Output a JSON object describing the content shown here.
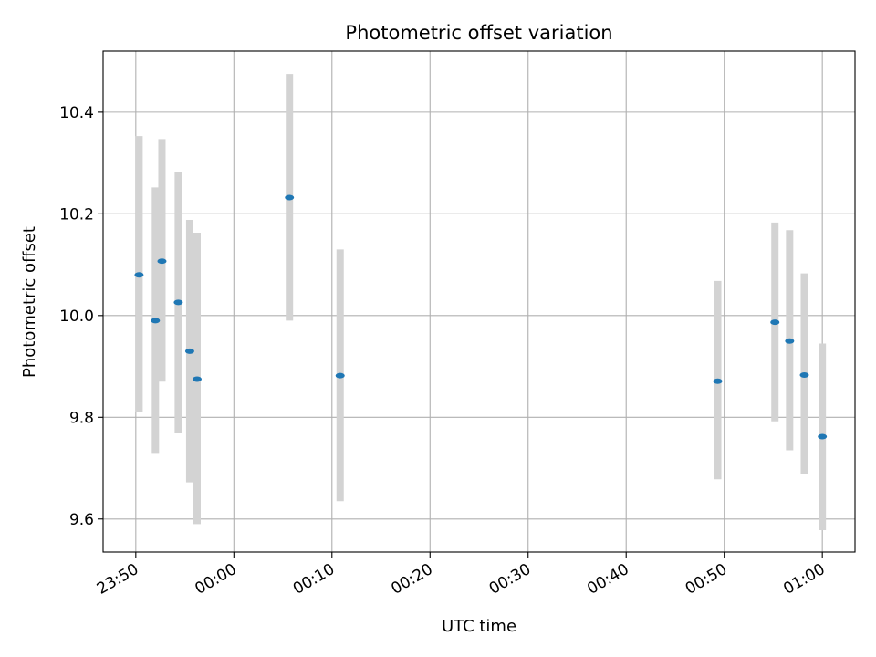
{
  "chart_data": {
    "type": "scatter",
    "title": "Photometric offset variation",
    "xlabel": "UTC time",
    "ylabel": "Photometric offset",
    "x_unit": "minutes",
    "xlim": [
      "23:46:40",
      "01:03:20"
    ],
    "ylim": [
      9.535,
      10.52
    ],
    "x_ticks": [
      "23:50",
      "00:00",
      "00:10",
      "00:20",
      "00:30",
      "00:40",
      "00:50",
      "01:00"
    ],
    "y_ticks": [
      9.6,
      9.8,
      10.0,
      10.2,
      10.4
    ],
    "y_tick_labels": [
      "9.6",
      "9.8",
      "10.0",
      "10.2",
      "10.4"
    ],
    "grid": true,
    "point_color": "#1f77b4",
    "errorbar_color": "#d3d3d3",
    "points": [
      {
        "x": "23:50:20",
        "y": 10.08,
        "ylow": 9.81,
        "yhigh": 10.353
      },
      {
        "x": "23:52:00",
        "y": 9.99,
        "ylow": 9.73,
        "yhigh": 10.252
      },
      {
        "x": "23:52:40",
        "y": 10.107,
        "ylow": 9.87,
        "yhigh": 10.347
      },
      {
        "x": "23:54:20",
        "y": 10.026,
        "ylow": 9.77,
        "yhigh": 10.283
      },
      {
        "x": "23:55:30",
        "y": 9.93,
        "ylow": 9.672,
        "yhigh": 10.188
      },
      {
        "x": "23:56:15",
        "y": 9.875,
        "ylow": 9.59,
        "yhigh": 10.163
      },
      {
        "x": "00:05:40",
        "y": 10.232,
        "ylow": 9.99,
        "yhigh": 10.475
      },
      {
        "x": "00:10:50",
        "y": 9.882,
        "ylow": 9.635,
        "yhigh": 10.13
      },
      {
        "x": "00:49:20",
        "y": 9.871,
        "ylow": 9.678,
        "yhigh": 10.068
      },
      {
        "x": "00:55:10",
        "y": 9.987,
        "ylow": 9.792,
        "yhigh": 10.183
      },
      {
        "x": "00:56:40",
        "y": 9.95,
        "ylow": 9.735,
        "yhigh": 10.168
      },
      {
        "x": "00:58:10",
        "y": 9.883,
        "ylow": 9.688,
        "yhigh": 10.083
      },
      {
        "x": "01:00:00",
        "y": 9.762,
        "ylow": 9.578,
        "yhigh": 9.945
      }
    ]
  }
}
